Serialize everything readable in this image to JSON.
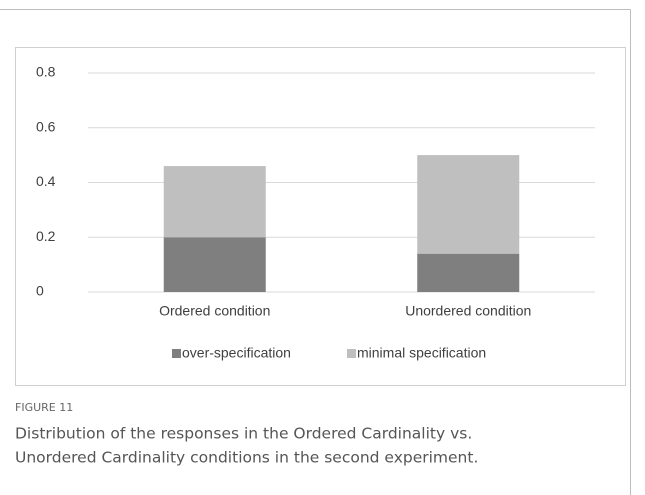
{
  "chart_data": {
    "type": "stacked_bar",
    "categories": [
      "Ordered condition",
      "Unordered condition"
    ],
    "series": [
      {
        "name": "over-specification",
        "color": "#7f7f7f",
        "values": [
          0.2,
          0.14
        ]
      },
      {
        "name": "minimal specification",
        "color": "#bfbfbf",
        "values": [
          0.26,
          0.36
        ]
      }
    ],
    "ylim": [
      0,
      0.8
    ],
    "yticks": [
      0,
      0.2,
      0.4,
      0.6,
      0.8
    ],
    "grid": true,
    "legend": "bottom"
  },
  "figure": {
    "label": "FIGURE 11",
    "caption_lines": [
      "Distribution of the responses in the Ordered Cardinality vs.",
      "Unordered Cardinality conditions in the second experiment."
    ]
  }
}
